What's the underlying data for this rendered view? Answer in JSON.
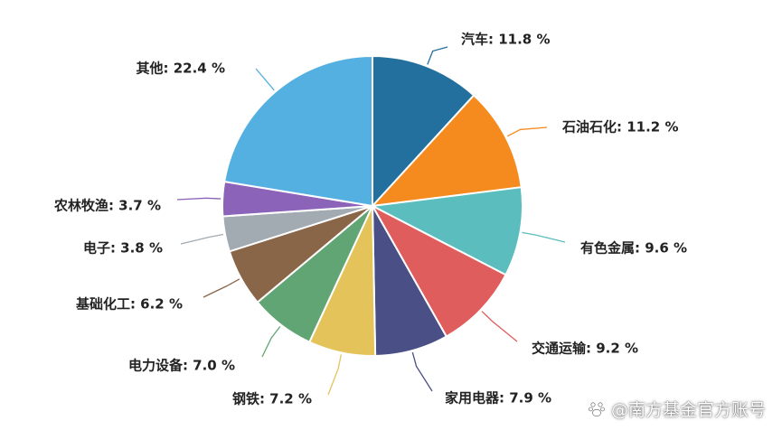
{
  "chart_data": {
    "type": "pie",
    "title": "",
    "slices": [
      {
        "label": "汽车",
        "value": 11.8,
        "display": "汽车: 11.8 %",
        "color": "#23709e"
      },
      {
        "label": "石油石化",
        "value": 11.2,
        "display": "石油石化: 11.2 %",
        "color": "#f58a1f"
      },
      {
        "label": "有色金属",
        "value": 9.6,
        "display": "有色金属: 9.6 %",
        "color": "#5bbdbd"
      },
      {
        "label": "交通运输",
        "value": 9.2,
        "display": "交通运输: 9.2 %",
        "color": "#e05d5d"
      },
      {
        "label": "家用电器",
        "value": 7.9,
        "display": "家用电器: 7.9 %",
        "color": "#4a4f86"
      },
      {
        "label": "钢铁",
        "value": 7.2,
        "display": "钢铁: 7.2 %",
        "color": "#e4c45a"
      },
      {
        "label": "电力设备",
        "value": 7.0,
        "display": "电力设备: 7.0 %",
        "color": "#62a575"
      },
      {
        "label": "基础化工",
        "value": 6.2,
        "display": "基础化工: 6.2 %",
        "color": "#8a6649"
      },
      {
        "label": "电子",
        "value": 3.8,
        "display": "电子: 3.8 %",
        "color": "#a2aab2"
      },
      {
        "label": "农林牧渔",
        "value": 3.7,
        "display": "农林牧渔: 3.7 %",
        "color": "#8b63b8"
      },
      {
        "label": "其他",
        "value": 22.4,
        "display": "其他: 22.4 %",
        "color": "#54b0e0"
      }
    ]
  },
  "watermark": {
    "text": "@南方基金官方账号"
  }
}
